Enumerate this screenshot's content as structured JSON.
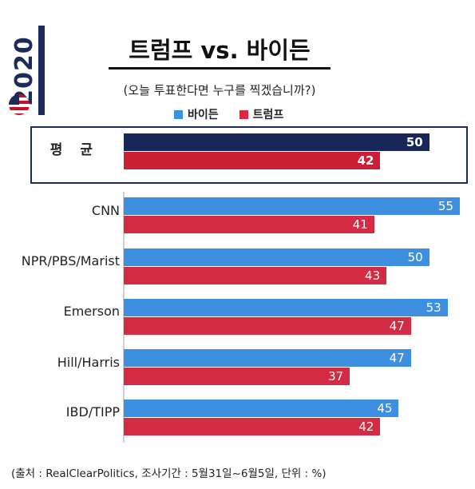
{
  "header": {
    "year": "2020",
    "title": "트럼프 vs. 바이든",
    "subtitle": "(오늘 투표한다면 누구를 찍겠습니까?)"
  },
  "legend": {
    "biden": "바이든",
    "trump": "트럼프"
  },
  "colors": {
    "biden": "#3f8fe0",
    "trump": "#d42a44",
    "average_biden": "#17275a",
    "average_trump": "#cc1f35"
  },
  "chart_data": {
    "type": "bar",
    "orientation": "horizontal",
    "title": "트럼프 vs. 바이든",
    "subtitle": "(오늘 투표한다면 누구를 찍겠습니까?)",
    "categories": [
      "평 균",
      "CNN",
      "NPR/PBS/Marist",
      "Emerson",
      "Hill/Harris",
      "IBD/TIPP"
    ],
    "series": [
      {
        "name": "바이든",
        "values": [
          50,
          55,
          50,
          53,
          47,
          45
        ]
      },
      {
        "name": "트럼프",
        "values": [
          42,
          41,
          43,
          47,
          37,
          42
        ]
      }
    ],
    "xlim": [
      0,
      55
    ],
    "grid": false,
    "legend_position": "top"
  },
  "footer": {
    "source": "(출처 : RealClearPolitics, 조사기간 : 5월31일~6월5일, 단위 : %)"
  }
}
